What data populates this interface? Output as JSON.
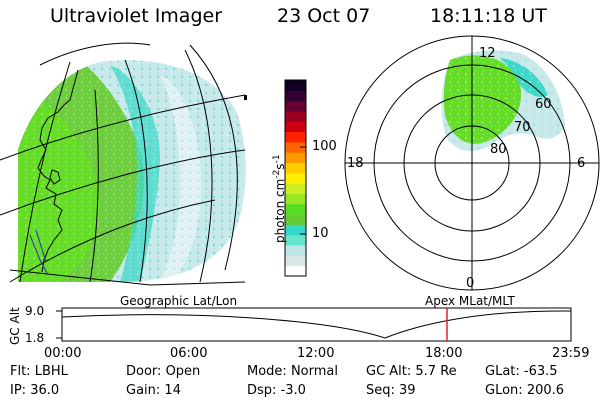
{
  "header": {
    "instrument": "Ultraviolet Imager",
    "date": "23 Oct 07",
    "time": "18:11:18 UT"
  },
  "colorbar": {
    "label_base": "photon cm",
    "label_exp1": "-2",
    "label_mid": "s",
    "label_exp2": "-1",
    "ticks": [
      "100",
      "10"
    ],
    "scale": "log",
    "colors": [
      "#ffffff",
      "#d9e6e6",
      "#bfe6e6",
      "#66e6cc",
      "#33d9cc",
      "#66cc33",
      "#55dd22",
      "#99e622",
      "#ccee22",
      "#ffee00",
      "#ffcc00",
      "#ff9900",
      "#ff6600",
      "#ff2200",
      "#cc0011",
      "#990022",
      "#660033",
      "#330033",
      "#110022"
    ]
  },
  "polar": {
    "mlt_labels": [
      "12",
      "18",
      "6",
      "0"
    ],
    "lat_labels": [
      "60",
      "70",
      "80"
    ]
  },
  "timeline": {
    "left_label": "Geographic Lat/Lon",
    "right_label": "Apex  MLat/MLT",
    "axis_label": "GC Alt",
    "ymax": "9.0",
    "ymin": "1.8",
    "time_ticks": [
      "00:00",
      "06:00",
      "12:00",
      "18:00",
      "23:59"
    ],
    "current_time_color": "#dd2222"
  },
  "info": {
    "row1": [
      {
        "label": "Flt:",
        "value": "LBHL"
      },
      {
        "label": "Door:",
        "value": "Open"
      },
      {
        "label": "Mode:",
        "value": "Normal"
      },
      {
        "label": "GC Alt:",
        "value": "5.7 Re"
      },
      {
        "label": "GLat:",
        "value": "-63.5"
      }
    ],
    "row2": [
      {
        "label": "IP:",
        "value": "36.0"
      },
      {
        "label": "Gain:",
        "value": "14"
      },
      {
        "label": "Dsp:",
        "value": "-3.0"
      },
      {
        "label": "Seq:",
        "value": "39"
      },
      {
        "label": "GLon:",
        "value": "200.6"
      }
    ]
  }
}
